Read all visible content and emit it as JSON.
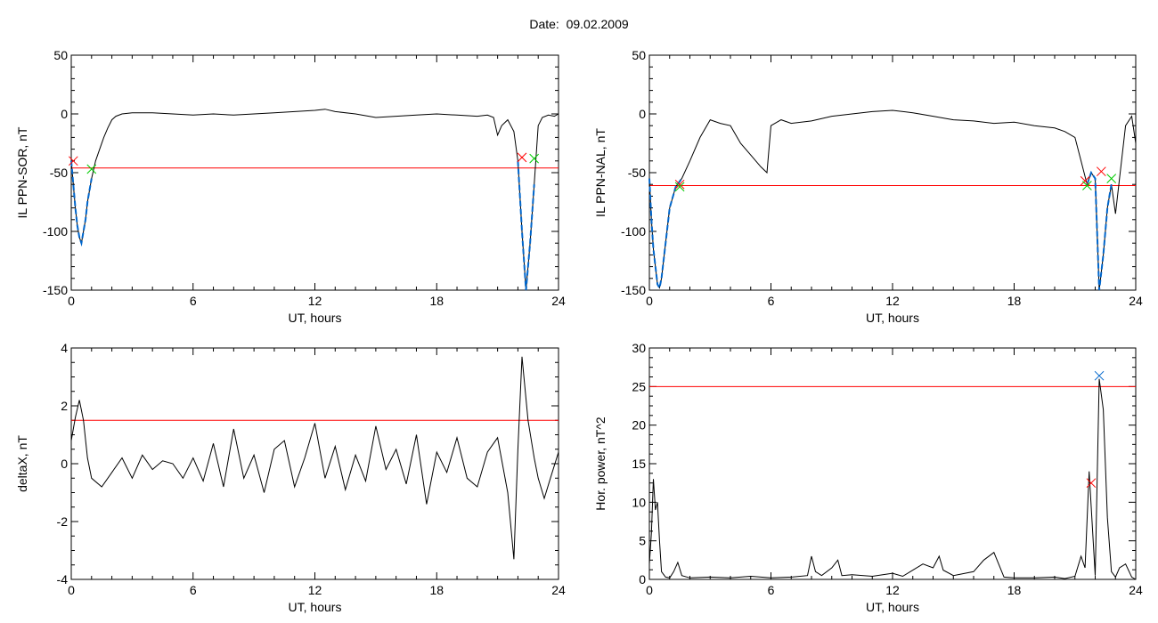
{
  "page": {
    "title": "Date:  09.02.2009"
  },
  "colors": {
    "trace": "#000000",
    "threshold": "#ff0000",
    "highlight": "#0066cc",
    "marker_start": "#ff0000",
    "marker_end": "#00cc00",
    "marker_peak": "#0066cc"
  },
  "chart_data": [
    {
      "type": "line",
      "title": "",
      "xlabel": "UT, hours",
      "ylabel": "IL PPN-SOR, nT",
      "xlim": [
        0,
        24
      ],
      "ylim": [
        -150,
        50
      ],
      "xticks": [
        0,
        6,
        12,
        18,
        24
      ],
      "yticks": [
        -150,
        -100,
        -50,
        0,
        50
      ],
      "threshold": -46,
      "series": [
        {
          "x": [
            0,
            0.1,
            0.2,
            0.3,
            0.4,
            0.5,
            0.6,
            0.7,
            0.8,
            1.0,
            1.2,
            1.4,
            1.6,
            1.8,
            2.0,
            2.2,
            2.5,
            3,
            4,
            5,
            6,
            7,
            8,
            9,
            10,
            11,
            12,
            12.5,
            13,
            14,
            15,
            16,
            17,
            18,
            19,
            20,
            20.5,
            20.8,
            21.0,
            21.2,
            21.5,
            21.8,
            22.0,
            22.2,
            22.4,
            22.6,
            22.8,
            23.0,
            23.2,
            23.5,
            23.8,
            24
          ],
          "y": [
            -40,
            -60,
            -80,
            -95,
            -105,
            -110,
            -100,
            -90,
            -75,
            -55,
            -40,
            -30,
            -20,
            -12,
            -5,
            -2,
            0,
            1,
            1,
            0,
            -1,
            0,
            -1,
            0,
            1,
            2,
            3,
            4,
            2,
            0,
            -3,
            -2,
            -1,
            0,
            -1,
            -2,
            -1,
            -3,
            -18,
            -10,
            -5,
            -15,
            -40,
            -100,
            -150,
            -110,
            -60,
            -10,
            -3,
            -1,
            -2,
            0
          ]
        }
      ],
      "highlight_ranges": [
        [
          0,
          1.0
        ],
        [
          22.0,
          22.8
        ]
      ],
      "markers": [
        {
          "x": 0.1,
          "y": -40,
          "kind": "start"
        },
        {
          "x": 1.0,
          "y": -47,
          "kind": "end"
        },
        {
          "x": 22.2,
          "y": -37,
          "kind": "start"
        },
        {
          "x": 22.8,
          "y": -38,
          "kind": "end"
        }
      ]
    },
    {
      "type": "line",
      "title": "",
      "xlabel": "UT, hours",
      "ylabel": "IL PPN-NAL, nT",
      "xlim": [
        0,
        24
      ],
      "ylim": [
        -150,
        50
      ],
      "xticks": [
        0,
        6,
        12,
        18,
        24
      ],
      "yticks": [
        -150,
        -100,
        -50,
        0,
        50
      ],
      "threshold": -61,
      "series": [
        {
          "x": [
            0,
            0.1,
            0.2,
            0.3,
            0.4,
            0.5,
            0.6,
            0.8,
            1.0,
            1.3,
            1.6,
            2.0,
            2.5,
            3,
            3.5,
            4,
            4.5,
            5,
            5.5,
            5.8,
            6,
            6.5,
            7,
            8,
            9,
            10,
            11,
            12,
            13,
            14,
            15,
            16,
            17,
            18,
            19,
            20,
            20.5,
            21,
            21.3,
            21.6,
            21.8,
            22.0,
            22.2,
            22.4,
            22.6,
            22.8,
            23.0,
            23.2,
            23.5,
            23.8,
            24
          ],
          "y": [
            -55,
            -90,
            -115,
            -130,
            -145,
            -148,
            -140,
            -110,
            -80,
            -62,
            -55,
            -40,
            -20,
            -5,
            -8,
            -10,
            -25,
            -35,
            -45,
            -50,
            -10,
            -5,
            -8,
            -6,
            -2,
            0,
            2,
            3,
            1,
            -2,
            -5,
            -6,
            -8,
            -7,
            -10,
            -12,
            -15,
            -20,
            -40,
            -60,
            -50,
            -55,
            -150,
            -120,
            -80,
            -60,
            -85,
            -55,
            -10,
            -2,
            -25
          ]
        }
      ],
      "highlight_ranges": [
        [
          0,
          1.6
        ],
        [
          21.6,
          22.8
        ]
      ],
      "markers": [
        {
          "x": 1.5,
          "y": -60,
          "kind": "start"
        },
        {
          "x": 1.5,
          "y": -62,
          "kind": "end"
        },
        {
          "x": 21.5,
          "y": -57,
          "kind": "start"
        },
        {
          "x": 21.6,
          "y": -61,
          "kind": "end"
        },
        {
          "x": 22.3,
          "y": -49,
          "kind": "start"
        },
        {
          "x": 22.8,
          "y": -55,
          "kind": "end"
        }
      ]
    },
    {
      "type": "line",
      "title": "",
      "xlabel": "UT, hours",
      "ylabel": "deltaX, nT",
      "xlim": [
        0,
        24
      ],
      "ylim": [
        -4,
        4
      ],
      "xticks": [
        0,
        6,
        12,
        18,
        24
      ],
      "yticks": [
        -4,
        -2,
        0,
        2,
        4
      ],
      "threshold": 1.5,
      "series": [
        {
          "x": [
            0,
            0.2,
            0.4,
            0.6,
            0.8,
            1.0,
            1.5,
            2,
            2.5,
            3,
            3.5,
            4,
            4.5,
            5,
            5.5,
            6,
            6.5,
            7,
            7.5,
            8,
            8.5,
            9,
            9.5,
            10,
            10.5,
            11,
            11.5,
            12,
            12.5,
            13,
            13.5,
            14,
            14.5,
            15,
            15.5,
            16,
            16.5,
            17,
            17.5,
            18,
            18.5,
            19,
            19.5,
            20,
            20.5,
            21,
            21.5,
            21.8,
            22,
            22.2,
            22.5,
            22.8,
            23,
            23.3,
            23.6,
            24
          ],
          "y": [
            0.8,
            1.6,
            2.2,
            1.5,
            0.2,
            -0.5,
            -0.8,
            -0.3,
            0.2,
            -0.5,
            0.3,
            -0.2,
            0.1,
            0,
            -0.5,
            0.2,
            -0.6,
            0.7,
            -0.8,
            1.2,
            -0.5,
            0.3,
            -1.0,
            0.5,
            0.8,
            -0.8,
            0.2,
            1.4,
            -0.5,
            0.6,
            -0.9,
            0.3,
            -0.6,
            1.3,
            -0.2,
            0.5,
            -0.7,
            1.0,
            -1.4,
            0.4,
            -0.3,
            0.9,
            -0.5,
            -0.8,
            0.4,
            0.9,
            -1.0,
            -3.3,
            0.5,
            3.7,
            1.5,
            0.2,
            -0.5,
            -1.2,
            -0.5,
            0.4
          ]
        }
      ],
      "highlight_ranges": [],
      "markers": []
    },
    {
      "type": "line",
      "title": "",
      "xlabel": "UT, hours",
      "ylabel": "Hor. power, nT^2",
      "xlim": [
        0,
        24
      ],
      "ylim": [
        0,
        30
      ],
      "xticks": [
        0,
        6,
        12,
        18,
        24
      ],
      "yticks": [
        0,
        5,
        10,
        15,
        20,
        25,
        30
      ],
      "threshold": 25,
      "series": [
        {
          "x": [
            0,
            0.1,
            0.2,
            0.3,
            0.4,
            0.5,
            0.6,
            0.8,
            1.0,
            1.2,
            1.4,
            1.6,
            2,
            3,
            4,
            5,
            6,
            7,
            7.8,
            8.0,
            8.2,
            8.5,
            9,
            9.3,
            9.5,
            10,
            11,
            12,
            12.5,
            13,
            13.5,
            14,
            14.3,
            14.5,
            15,
            16,
            16.5,
            17,
            17.5,
            18,
            19,
            20,
            20.5,
            21,
            21.3,
            21.5,
            21.7,
            22.0,
            22.2,
            22.4,
            22.6,
            22.8,
            23,
            23.2,
            23.5,
            23.8,
            24
          ],
          "y": [
            2,
            6,
            13,
            9,
            10,
            5,
            1,
            0.3,
            0.2,
            1,
            2.2,
            0.5,
            0.2,
            0.3,
            0.2,
            0.4,
            0.2,
            0.3,
            0.5,
            3,
            1,
            0.5,
            1.5,
            2.5,
            0.5,
            0.6,
            0.4,
            0.8,
            0.4,
            1.2,
            2,
            1.5,
            3,
            1.2,
            0.5,
            1,
            2.5,
            3.5,
            0.3,
            0.2,
            0.2,
            0.3,
            0.1,
            0.4,
            3,
            1.5,
            14,
            0.5,
            26,
            22,
            8,
            1,
            0.3,
            1.5,
            2,
            0.3,
            0
          ]
        }
      ],
      "highlight_ranges": [],
      "markers": [
        {
          "x": 21.8,
          "y": 12.5,
          "kind": "start"
        },
        {
          "x": 22.2,
          "y": 26.4,
          "kind": "peak"
        }
      ]
    }
  ]
}
